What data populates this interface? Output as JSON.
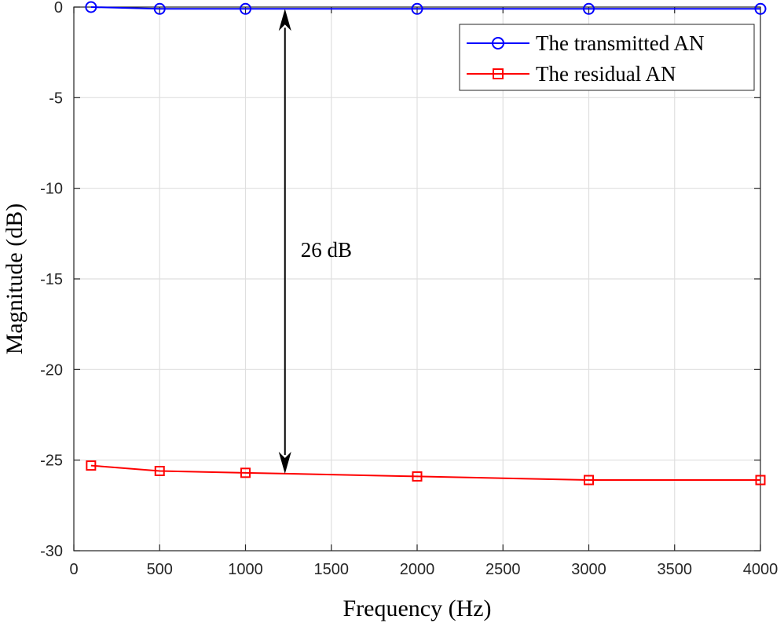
{
  "chart_data": {
    "type": "line",
    "xlabel": "Frequency (Hz)",
    "ylabel": "Magnitude (dB)",
    "xlim": [
      0,
      4000
    ],
    "ylim": [
      -30,
      0
    ],
    "x_ticks": [
      0,
      500,
      1000,
      1500,
      2000,
      2500,
      3000,
      3500,
      4000
    ],
    "y_ticks": [
      0,
      -5,
      -10,
      -15,
      -20,
      -25,
      -30
    ],
    "grid": true,
    "legend_position": "top-right",
    "series": [
      {
        "name": "The transmitted AN",
        "color": "#0000ff",
        "marker": "circle",
        "x": [
          100,
          500,
          1000,
          2000,
          3000,
          4000
        ],
        "y": [
          0,
          -0.1,
          -0.1,
          -0.1,
          -0.1,
          -0.1
        ]
      },
      {
        "name": "The residual AN",
        "color": "#ff0000",
        "marker": "square",
        "x": [
          100,
          500,
          1000,
          2000,
          3000,
          4000
        ],
        "y": [
          -25.3,
          -25.6,
          -25.7,
          -25.9,
          -26.1,
          -26.1
        ]
      }
    ],
    "annotation": {
      "text": "26 dB",
      "x": 1230,
      "y_from": -0.1,
      "y_to": -25.75,
      "label_y": -14
    }
  }
}
